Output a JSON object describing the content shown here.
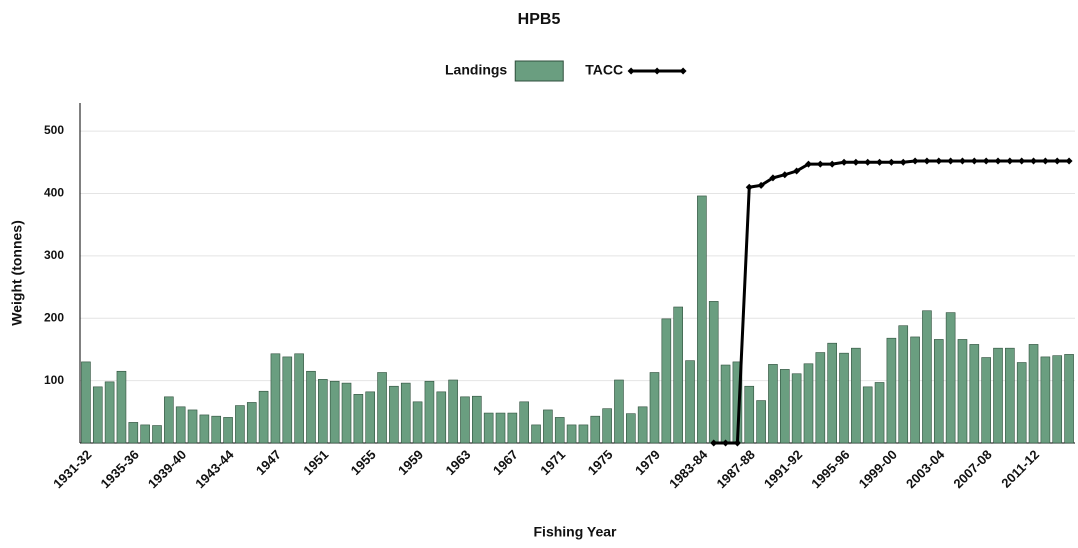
{
  "chart_data": {
    "type": "bar_line",
    "title": "HPB5",
    "x_label": "Fishing Year",
    "y_label": "Weight (tonnes)",
    "categories": [
      "1931-32",
      null,
      null,
      null,
      "1935-36",
      null,
      null,
      null,
      "1939-40",
      null,
      null,
      null,
      "1943-44",
      null,
      null,
      null,
      "1947",
      null,
      null,
      null,
      "1951",
      null,
      null,
      null,
      "1955",
      null,
      null,
      null,
      "1959",
      null,
      null,
      null,
      "1963",
      null,
      null,
      null,
      "1967",
      null,
      null,
      null,
      "1971",
      null,
      null,
      null,
      "1975",
      null,
      null,
      null,
      "1979",
      null,
      null,
      null,
      "1983-84",
      null,
      null,
      null,
      "1987-88",
      null,
      null,
      null,
      "1991-92",
      null,
      null,
      null,
      "1995-96",
      null,
      null,
      null,
      "1999-00",
      null,
      null,
      null,
      "2003-04",
      null,
      null,
      null,
      "2007-08",
      null,
      null,
      null,
      "2011-12",
      null,
      null,
      null
    ],
    "series": [
      {
        "name": "Landings",
        "type": "bar",
        "color": "#6a9e80",
        "values": [
          130,
          90,
          98,
          115,
          33,
          29,
          28,
          74,
          58,
          53,
          45,
          43,
          41,
          60,
          65,
          83,
          143,
          138,
          143,
          115,
          102,
          99,
          96,
          78,
          82,
          113,
          91,
          96,
          66,
          99,
          82,
          101,
          74,
          75,
          48,
          48,
          48,
          66,
          29,
          53,
          41,
          29,
          29,
          43,
          55,
          101,
          47,
          58,
          113,
          199,
          218,
          132,
          396,
          227,
          125,
          130,
          91,
          68,
          126,
          118,
          111,
          127,
          145,
          160,
          144,
          152,
          90,
          97,
          168,
          188,
          170,
          212,
          166,
          209,
          166,
          158,
          137,
          152,
          152,
          129,
          158,
          138,
          140,
          142
        ]
      },
      {
        "name": "TACC",
        "type": "line",
        "color": "#000000",
        "values": [
          null,
          null,
          null,
          null,
          null,
          null,
          null,
          null,
          null,
          null,
          null,
          null,
          null,
          null,
          null,
          null,
          null,
          null,
          null,
          null,
          null,
          null,
          null,
          null,
          null,
          null,
          null,
          null,
          null,
          null,
          null,
          null,
          null,
          null,
          null,
          null,
          null,
          null,
          null,
          null,
          null,
          null,
          null,
          null,
          null,
          null,
          null,
          null,
          null,
          null,
          null,
          null,
          null,
          0,
          0,
          0,
          410,
          413,
          425,
          430,
          436,
          447,
          447,
          447,
          450,
          450,
          450,
          450,
          450,
          450,
          452,
          452,
          452,
          452,
          452,
          452,
          452,
          452,
          452,
          452,
          452,
          452,
          452,
          452
        ]
      }
    ],
    "ylim": [
      0,
      545
    ],
    "yticks": [
      100,
      200,
      300,
      400,
      500
    ],
    "grid": true,
    "legend": "top"
  }
}
